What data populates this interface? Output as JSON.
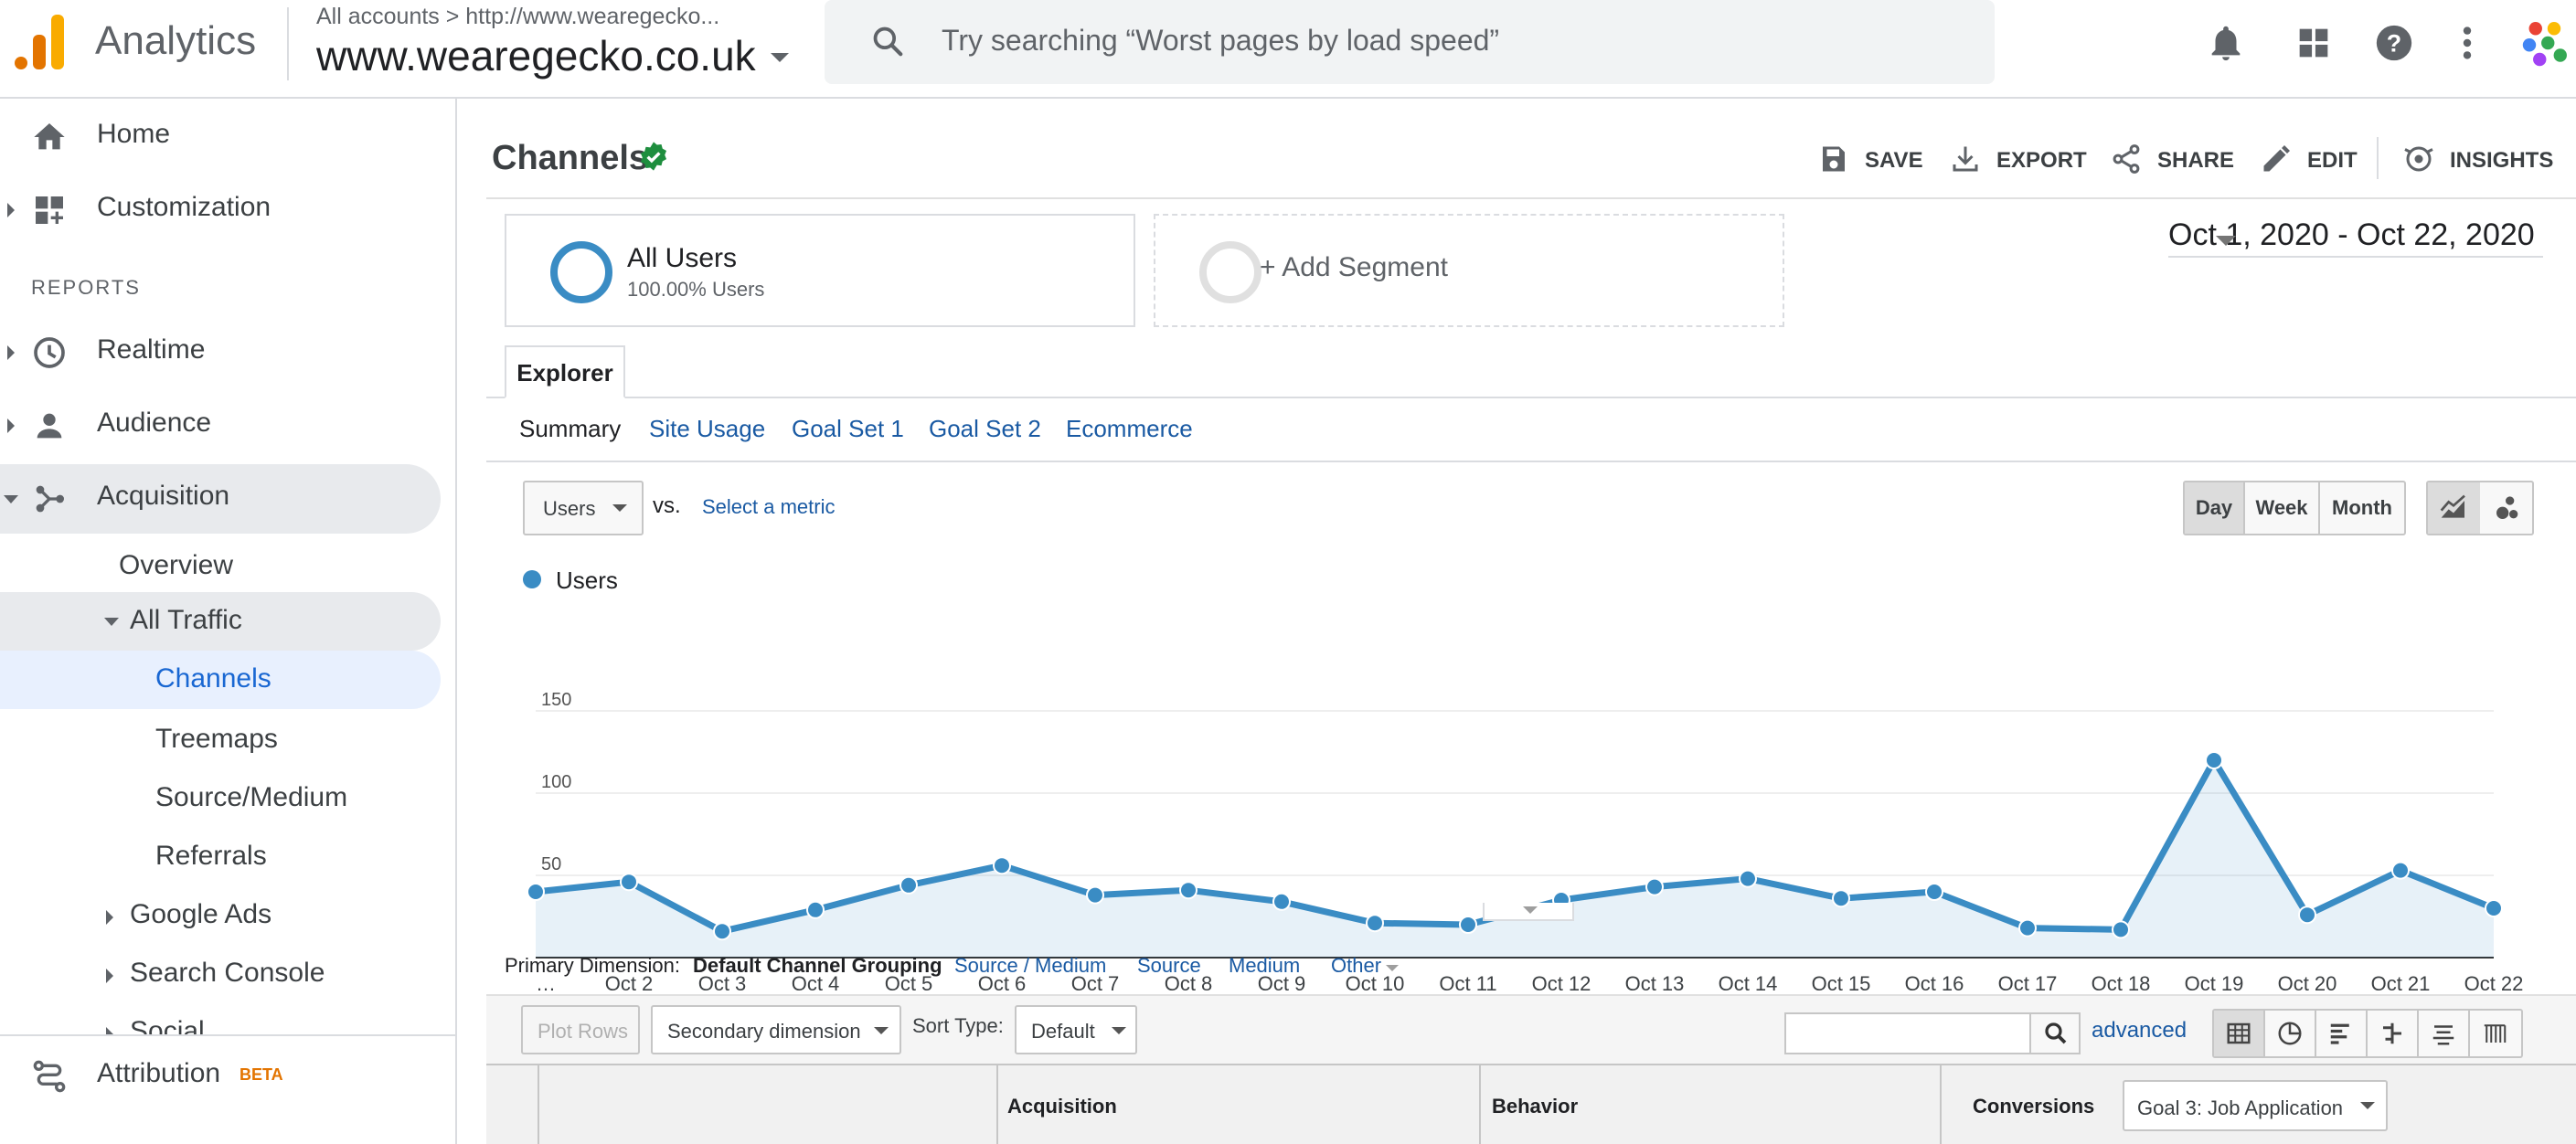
{
  "app": {
    "name": "Analytics",
    "account_path": "All accounts  >  http://www.wearegecko...",
    "account_name": "www.wearegecko.co.uk",
    "search_placeholder": "Try searching “Worst pages by load speed”",
    "brand_colors": {
      "orange": "#e37400",
      "yellow": "#f9ab00",
      "accent_blue": "#1a5aa3",
      "series_blue": "#3a8cc4"
    }
  },
  "sidebar": {
    "items": [
      {
        "label": "Home",
        "icon": "home-icon"
      },
      {
        "label": "Customization",
        "icon": "dashboard-plus-icon"
      },
      {
        "label": "Realtime",
        "icon": "clock-icon"
      },
      {
        "label": "Audience",
        "icon": "person-icon"
      },
      {
        "label": "Acquisition",
        "icon": "acquisition-icon"
      }
    ],
    "reports_header": "REPORTS",
    "acquisition_children": {
      "overview": "Overview",
      "all_traffic": "All Traffic",
      "channels": "Channels",
      "treemaps": "Treemaps",
      "source_medium": "Source/Medium",
      "referrals": "Referrals",
      "google_ads": "Google Ads",
      "search_console": "Search Console",
      "social": "Social"
    },
    "attribution": "Attribution",
    "attribution_badge": "BETA"
  },
  "report": {
    "title": "Channels",
    "toolbar": {
      "save": "SAVE",
      "export": "EXPORT",
      "share": "SHARE",
      "edit": "EDIT",
      "insights": "INSIGHTS"
    },
    "segments": [
      {
        "name": "All Users",
        "sub": "100.00% Users"
      },
      {
        "name": "+ Add Segment"
      }
    ],
    "date_range": "Oct 1, 2020 - Oct 22, 2020",
    "explorer_tab": "Explorer",
    "subtabs": [
      "Summary",
      "Site Usage",
      "Goal Set 1",
      "Goal Set 2",
      "Ecommerce"
    ],
    "metric": "Users",
    "vs": "vs.",
    "select_metric": "Select a metric",
    "granularity": [
      "Day",
      "Week",
      "Month"
    ],
    "granularity_selected": "Day",
    "legend": "Users"
  },
  "chart_data": {
    "type": "area",
    "series": [
      {
        "name": "Users",
        "values": [
          40,
          46,
          16,
          29,
          44,
          56,
          38,
          41,
          34,
          21,
          20,
          35,
          43,
          48,
          36,
          40,
          18,
          17,
          120,
          26,
          53,
          30
        ]
      }
    ],
    "x": [
      "…",
      "Oct 2",
      "Oct 3",
      "Oct 4",
      "Oct 5",
      "Oct 6",
      "Oct 7",
      "Oct 8",
      "Oct 9",
      "Oct 10",
      "Oct 11",
      "Oct 12",
      "Oct 13",
      "Oct 14",
      "Oct 15",
      "Oct 16",
      "Oct 17",
      "Oct 18",
      "Oct 19",
      "Oct 20",
      "Oct 21",
      "Oct 22"
    ],
    "y_ticks": [
      "150",
      "100",
      "50"
    ],
    "ylim": [
      0,
      150
    ],
    "grid": true,
    "color": "#3a8cc4"
  },
  "table": {
    "primary_dimension_label": "Primary Dimension:",
    "primary_dimensions": [
      "Default Channel Grouping",
      "Source / Medium",
      "Source",
      "Medium",
      "Other"
    ],
    "plot_rows": "Plot Rows",
    "secondary_dimension": "Secondary dimension",
    "sort_type_label": "Sort Type:",
    "sort_type": "Default",
    "advanced": "advanced",
    "headers": {
      "acquisition": "Acquisition",
      "behavior": "Behavior",
      "conversions": "Conversions"
    },
    "goal_select": "Goal 3: Job Application"
  }
}
